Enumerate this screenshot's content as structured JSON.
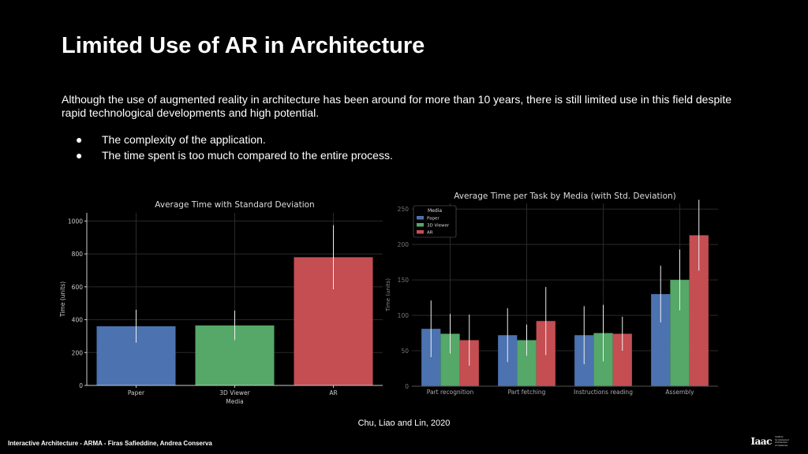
{
  "slide": {
    "title": "Limited Use of AR in Architecture",
    "intro": "Although the use of augmented reality in architecture has been around for more than 10 years, there is still limited use in this field despite rapid technological developments and high potential.",
    "bullet_symbol": "●",
    "bullets": [
      "The complexity of the application.",
      "The time spent is too much compared to the entire process."
    ],
    "citation": "Chu, Liao and Lin, 2020",
    "footer": "Interactive Architecture - ARMA - Firas Safieddine, Andrea Conserva",
    "logo": {
      "mark": "Iaac",
      "sub_lines": [
        "Institute",
        "for Advanced",
        "Architecture",
        "of Catalonia"
      ]
    }
  },
  "colors": {
    "paper": "#4C72B0",
    "viewer": "#55A868",
    "ar": "#C44E52"
  },
  "chart_data": [
    {
      "type": "bar",
      "title": "Average Time with Standard Deviation",
      "xlabel": "Media",
      "ylabel": "Time (units)",
      "categories": [
        "Paper",
        "3D Viewer",
        "AR"
      ],
      "values": [
        360,
        365,
        780
      ],
      "errors": [
        100,
        90,
        195
      ],
      "ylim": [
        0,
        1050
      ],
      "yticks": [
        0,
        200,
        400,
        600,
        800,
        1000
      ],
      "grid": true
    },
    {
      "type": "bar",
      "title": "Average Time per Task by Media (with Std. Deviation)",
      "ylabel": "Time (units)",
      "categories": [
        "Part recognition",
        "Part fetching",
        "Instructions reading",
        "Assembly"
      ],
      "series": [
        {
          "name": "Paper",
          "values": [
            81,
            72,
            72,
            130
          ],
          "errors": [
            40,
            38,
            41,
            40
          ]
        },
        {
          "name": "3D Viewer",
          "values": [
            74,
            65,
            75,
            150
          ],
          "errors": [
            28,
            22,
            40,
            43
          ]
        },
        {
          "name": "AR",
          "values": [
            65,
            92,
            74,
            213
          ],
          "errors": [
            36,
            48,
            24,
            50
          ]
        }
      ],
      "legend_title": "Media",
      "legend_position": "top-left",
      "ylim": [
        0,
        258
      ],
      "yticks": [
        0,
        50,
        100,
        150,
        200,
        250
      ],
      "grid": true
    }
  ]
}
